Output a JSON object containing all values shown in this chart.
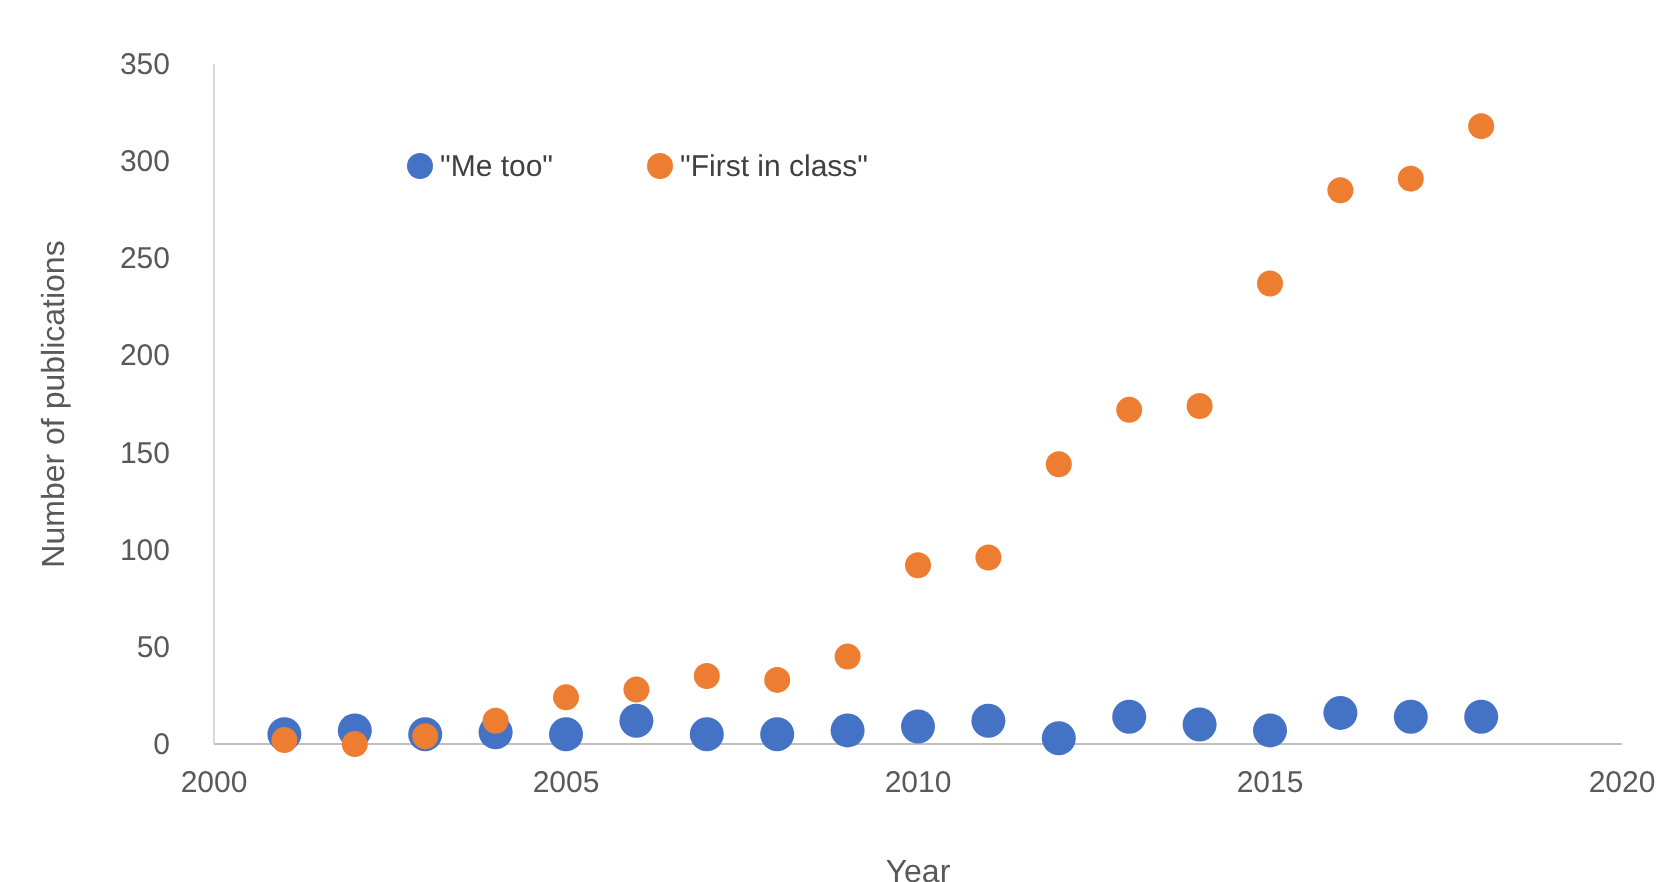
{
  "chart_data": {
    "type": "scatter",
    "xlabel": "Year",
    "ylabel": "Number of publications",
    "x": [
      2001,
      2002,
      2003,
      2004,
      2005,
      2006,
      2007,
      2008,
      2009,
      2010,
      2011,
      2012,
      2013,
      2014,
      2015,
      2016,
      2017,
      2018
    ],
    "series": [
      {
        "name": "\"Me too\"",
        "color": "#4472c4",
        "values": [
          5,
          7,
          5,
          6,
          5,
          12,
          5,
          5,
          7,
          9,
          12,
          3,
          14,
          10,
          7,
          16,
          14,
          14
        ]
      },
      {
        "name": "\"First in class\"",
        "color": "#ed7d31",
        "values": [
          2,
          0,
          4,
          12,
          24,
          28,
          35,
          33,
          45,
          92,
          96,
          144,
          172,
          174,
          237,
          285,
          291,
          318
        ]
      }
    ],
    "xlim": [
      2000,
      2020
    ],
    "xticks": [
      2000,
      2005,
      2010,
      2015,
      2020
    ],
    "ylim": [
      0,
      350
    ],
    "yticks": [
      0,
      50,
      100,
      150,
      200,
      250,
      300,
      350
    ],
    "grid": false,
    "legend": "top left",
    "marker": "circle"
  }
}
